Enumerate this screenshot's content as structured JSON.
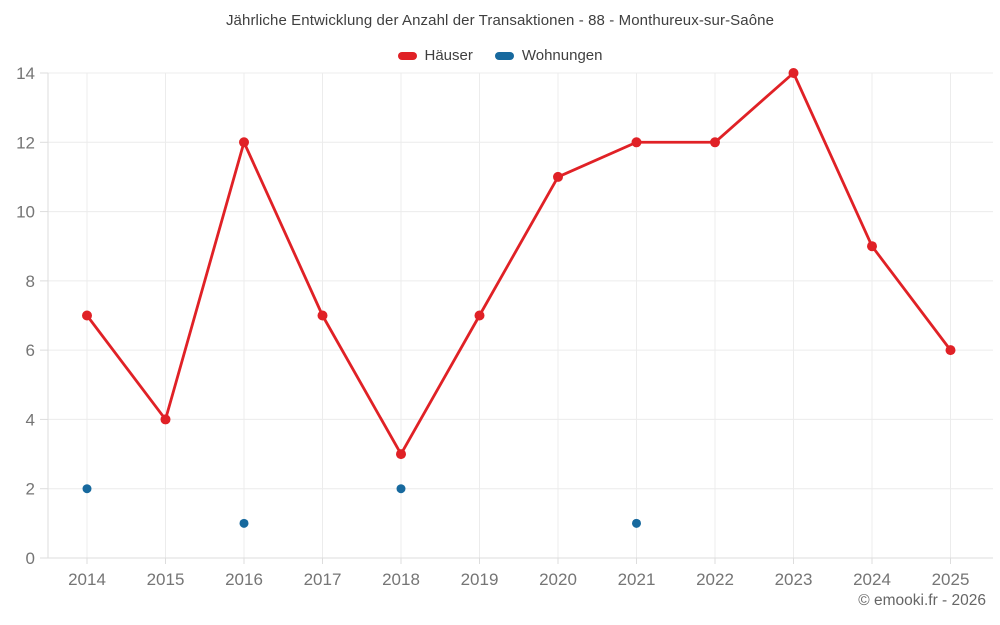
{
  "title": "Jährliche Entwicklung der Anzahl der Transaktionen - 88 - Monthureux-sur-Saône",
  "footer": "© emooki.fr - 2026",
  "legend": {
    "items": [
      {
        "label": "Häuser",
        "color": "#e02126"
      },
      {
        "label": "Wohnungen",
        "color": "#17699e"
      }
    ]
  },
  "chart_data": {
    "type": "line",
    "title": "Jährliche Entwicklung der Anzahl der Transaktionen - 88 - Monthureux-sur-Saône",
    "categories": [
      "2014",
      "2015",
      "2016",
      "2017",
      "2018",
      "2019",
      "2020",
      "2021",
      "2022",
      "2023",
      "2024",
      "2025"
    ],
    "series": [
      {
        "name": "Häuser",
        "type": "line",
        "color": "#e02126",
        "values": [
          7,
          4,
          12,
          7,
          3,
          7,
          11,
          12,
          12,
          14,
          9,
          6
        ]
      },
      {
        "name": "Wohnungen",
        "type": "scatter",
        "color": "#17699e",
        "values": [
          2,
          null,
          1,
          null,
          2,
          null,
          null,
          1,
          null,
          null,
          null,
          null
        ]
      }
    ],
    "xlabel": "",
    "ylabel": "",
    "ylim": [
      0,
      14
    ],
    "yticks": [
      0,
      2,
      4,
      6,
      8,
      10,
      12,
      14
    ],
    "grid": true,
    "legend_position": "top"
  },
  "colors": {
    "background": "#ffffff",
    "grid": "#ececec",
    "axis": "#dddddd",
    "tick_label": "#757575",
    "title_text": "#3f3f3f",
    "footer_text": "#666666"
  }
}
